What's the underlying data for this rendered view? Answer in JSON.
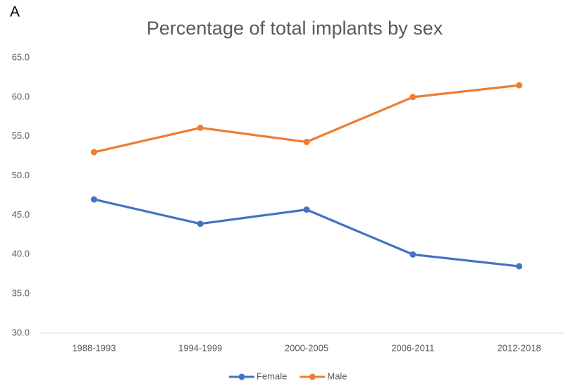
{
  "panel_label": "A",
  "chart_data": {
    "type": "line",
    "title": "Percentage of total implants by sex",
    "categories": [
      "1988-1993",
      "1994-1999",
      "2000-2005",
      "2006-2011",
      "2012-2018"
    ],
    "series": [
      {
        "name": "Female",
        "color": "#4472c4",
        "values": [
          47.0,
          43.9,
          45.7,
          40.0,
          38.5
        ]
      },
      {
        "name": "Male",
        "color": "#ed7d31",
        "values": [
          53.0,
          56.1,
          54.3,
          60.0,
          61.5
        ]
      }
    ],
    "ylim": [
      30,
      65
    ],
    "yticks": [
      {
        "value": 30,
        "label": "30.0"
      },
      {
        "value": 35,
        "label": "35.0"
      },
      {
        "value": 40,
        "label": "40.0"
      },
      {
        "value": 45,
        "label": "45.0"
      },
      {
        "value": 50,
        "label": "50.0"
      },
      {
        "value": 55,
        "label": "55.0"
      },
      {
        "value": 60,
        "label": "60.0"
      },
      {
        "value": 65,
        "label": "65.0"
      }
    ],
    "grid": false,
    "legend": "bottom"
  }
}
